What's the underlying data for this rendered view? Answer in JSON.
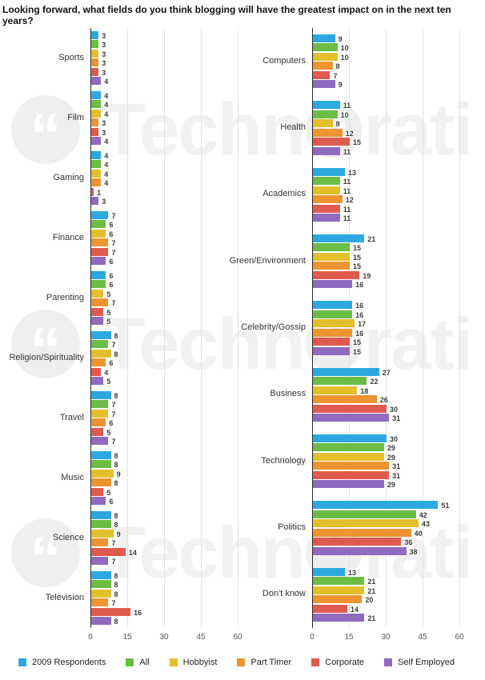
{
  "title": "Looking forward, what fields do you think blogging will have the greatest impact on in the next ten years?",
  "watermark": {
    "text": "Technorati"
  },
  "chart_data": {
    "type": "bar",
    "orientation": "horizontal",
    "title": "Looking forward, what fields do you think blogging will have the greatest impact on in the next ten years?",
    "xlim": [
      0,
      60
    ],
    "xticks": [
      0,
      15,
      30,
      45,
      60
    ],
    "grid": true,
    "legend_position": "bottom",
    "series_names": [
      "2009 Respondents",
      "All",
      "Hobbyist",
      "Part Timer",
      "Corporate",
      "Self Employed"
    ],
    "series_colors": [
      "#2DA9DF",
      "#6ABD45",
      "#E2C02C",
      "#EF9330",
      "#DF5B4D",
      "#8F6BBF"
    ],
    "panels": [
      {
        "name": "left",
        "groups": [
          {
            "label": "Sports",
            "values": [
              3,
              3,
              3,
              3,
              3,
              4
            ]
          },
          {
            "label": "Film",
            "values": [
              4,
              4,
              4,
              3,
              3,
              4
            ]
          },
          {
            "label": "Gaming",
            "values": [
              4,
              4,
              4,
              4,
              1,
              3
            ]
          },
          {
            "label": "Finance",
            "values": [
              7,
              6,
              6,
              7,
              7,
              6
            ]
          },
          {
            "label": "Parenting",
            "values": [
              6,
              6,
              5,
              7,
              5,
              5
            ]
          },
          {
            "label": "Religion/Spirituality",
            "values": [
              8,
              7,
              8,
              6,
              4,
              5
            ]
          },
          {
            "label": "Travel",
            "values": [
              8,
              7,
              7,
              6,
              5,
              7
            ]
          },
          {
            "label": "Music",
            "values": [
              8,
              8,
              9,
              8,
              5,
              6
            ]
          },
          {
            "label": "Science",
            "values": [
              8,
              8,
              9,
              7,
              14,
              7
            ]
          },
          {
            "label": "Television",
            "values": [
              8,
              8,
              8,
              7,
              16,
              8
            ]
          }
        ]
      },
      {
        "name": "right",
        "groups": [
          {
            "label": "Computers",
            "values": [
              9,
              10,
              10,
              8,
              7,
              9
            ]
          },
          {
            "label": "Health",
            "values": [
              11,
              10,
              8,
              12,
              15,
              11
            ]
          },
          {
            "label": "Academics",
            "values": [
              13,
              11,
              11,
              12,
              11,
              11
            ]
          },
          {
            "label": "Green/Environment",
            "values": [
              21,
              15,
              15,
              15,
              19,
              16
            ]
          },
          {
            "label": "Celebrity/Gossip",
            "values": [
              16,
              16,
              17,
              16,
              15,
              15
            ]
          },
          {
            "label": "Business",
            "values": [
              27,
              22,
              18,
              26,
              30,
              31
            ]
          },
          {
            "label": "Technology",
            "values": [
              30,
              29,
              29,
              31,
              31,
              29
            ]
          },
          {
            "label": "Politics",
            "values": [
              51,
              42,
              43,
              40,
              36,
              38
            ]
          },
          {
            "label": "Don't know",
            "values": [
              13,
              21,
              21,
              20,
              14,
              21
            ]
          }
        ]
      }
    ]
  }
}
